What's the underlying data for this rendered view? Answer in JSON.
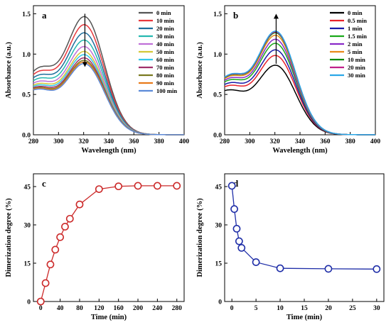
{
  "chart_data": [
    {
      "panel": "a",
      "type": "line",
      "xlabel": "Wavelength (nm)",
      "ylabel": "Absorbance (a.u.)",
      "xlim": [
        280,
        400
      ],
      "ylim": [
        0.0,
        1.6
      ],
      "xticks": [
        280,
        300,
        320,
        340,
        360,
        380,
        400
      ],
      "yticks": [
        0.0,
        0.5,
        1.0,
        1.5
      ],
      "ytick_labels": [
        "0.0",
        "0.5",
        "1.0",
        "1.5"
      ],
      "legend_position": "top-right",
      "arrow": "down",
      "series": [
        {
          "name": "0 min",
          "color": "#555555",
          "peak": 1.43
        },
        {
          "name": "10 min",
          "color": "#e8383d",
          "peak": 1.33
        },
        {
          "name": "20 min",
          "color": "#1f6e9c",
          "peak": 1.23
        },
        {
          "name": "30 min",
          "color": "#26b8b0",
          "peak": 1.14
        },
        {
          "name": "40 min",
          "color": "#c070d8",
          "peak": 1.06
        },
        {
          "name": "50 min",
          "color": "#d4c838",
          "peak": 1.0
        },
        {
          "name": "60 min",
          "color": "#33c8e8",
          "peak": 0.96
        },
        {
          "name": "70 min",
          "color": "#a0306a",
          "peak": 0.92
        },
        {
          "name": "80 min",
          "color": "#7a7a20",
          "peak": 0.89
        },
        {
          "name": "90 min",
          "color": "#e87a1a",
          "peak": 0.87
        },
        {
          "name": "100 min",
          "color": "#5c8ad8",
          "peak": 0.85
        }
      ]
    },
    {
      "panel": "b",
      "type": "line",
      "xlabel": "Wavelength (nm)",
      "ylabel": "Absorbance (a.u.)",
      "xlim": [
        280,
        400
      ],
      "ylim": [
        0.0,
        1.6
      ],
      "xticks": [
        280,
        300,
        320,
        340,
        360,
        380,
        400
      ],
      "yticks": [
        0.0,
        0.5,
        1.0,
        1.5
      ],
      "ytick_labels": [
        "0.0",
        "0.5",
        "1.0",
        "1.5"
      ],
      "legend_position": "top-right",
      "arrow": "up",
      "series": [
        {
          "name": "0 min",
          "color": "#000000",
          "peak": 0.83
        },
        {
          "name": "0.5 min",
          "color": "#e8222a",
          "peak": 0.95
        },
        {
          "name": "1 min",
          "color": "#1a1aa8",
          "peak": 1.02
        },
        {
          "name": "1.5 min",
          "color": "#1aa81a",
          "peak": 1.1
        },
        {
          "name": "2 min",
          "color": "#8a2ac8",
          "peak": 1.15
        },
        {
          "name": "5 min",
          "color": "#e88a1a",
          "peak": 1.2
        },
        {
          "name": "10 min",
          "color": "#0a8a0a",
          "peak": 1.23
        },
        {
          "name": "20 min",
          "color": "#c0208a",
          "peak": 1.24
        },
        {
          "name": "30 min",
          "color": "#2aa8e8",
          "peak": 1.25
        }
      ]
    },
    {
      "panel": "c",
      "type": "line",
      "xlabel": "Time (min)",
      "ylabel": "Dimerization degree (%)",
      "xlim": [
        -15,
        295
      ],
      "ylim": [
        0,
        50
      ],
      "xticks": [
        0,
        40,
        80,
        120,
        160,
        200,
        240,
        280
      ],
      "yticks": [
        0,
        15,
        30,
        45
      ],
      "ytick_labels": [
        "0",
        "15",
        "30",
        "45"
      ],
      "color": "#cc2a2a",
      "x": [
        0,
        10,
        20,
        30,
        40,
        50,
        60,
        80,
        120,
        160,
        200,
        240,
        280
      ],
      "y": [
        0,
        7.2,
        14.5,
        20.3,
        25.2,
        29.3,
        32.4,
        38.0,
        44.0,
        45.1,
        45.3,
        45.3,
        45.3
      ]
    },
    {
      "panel": "d",
      "type": "line",
      "xlabel": "Time (min)",
      "ylabel": "Dimerization degree (%)",
      "xlim": [
        -1.5,
        31.5
      ],
      "ylim": [
        0,
        50
      ],
      "xticks": [
        0,
        5,
        10,
        15,
        20,
        25,
        30
      ],
      "yticks": [
        0,
        15,
        30,
        45
      ],
      "ytick_labels": [
        "0",
        "15",
        "30",
        "45"
      ],
      "color": "#1f2ea8",
      "x": [
        0,
        0.5,
        1,
        1.5,
        2,
        5,
        10,
        20,
        30
      ],
      "y": [
        45.3,
        36.2,
        28.5,
        23.6,
        21.0,
        15.4,
        13.0,
        12.8,
        12.7
      ]
    }
  ]
}
